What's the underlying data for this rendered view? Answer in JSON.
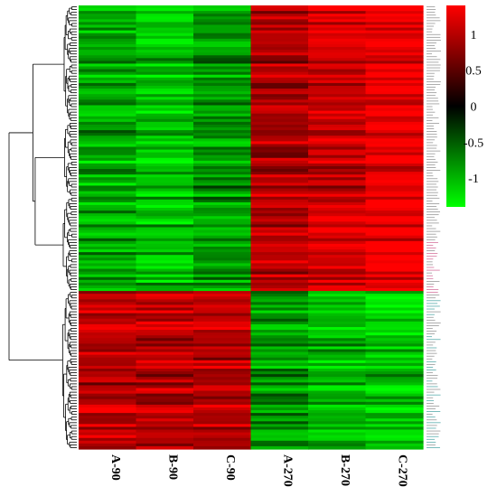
{
  "chart_data": {
    "type": "heatmap",
    "columns": [
      "A-90",
      "B-90",
      "C-90",
      "A-270",
      "B-270",
      "C-270"
    ],
    "colorbar": {
      "ticks": [
        1,
        0.5,
        0,
        -0.5,
        -1
      ],
      "tick_labels": [
        "1",
        "0.5",
        "0",
        "-0.5",
        "-1"
      ],
      "min": -1.4,
      "max": 1.4,
      "low_color": "#00ff00",
      "mid_color": "#000000",
      "high_color": "#ff0000"
    },
    "row_clusters": [
      {
        "cluster": "upper",
        "columns_mean": [
          -0.9,
          -1.0,
          -0.8,
          0.9,
          1.1,
          1.3
        ]
      },
      {
        "cluster": "lower",
        "columns_mean": [
          1.0,
          1.0,
          1.0,
          -0.8,
          -1.0,
          -1.1
        ]
      }
    ],
    "dendrogram": "rows clustered (left)",
    "grid": false,
    "legend": "colorbar right"
  }
}
